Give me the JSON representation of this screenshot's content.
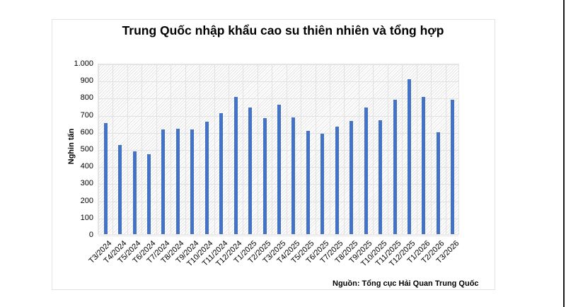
{
  "chart_data": {
    "type": "bar",
    "title": "Trung Quốc nhập khẩu cao su thiên nhiên và tổng hợp",
    "xlabel": "",
    "ylabel": "Nghin tấn",
    "ylim": [
      0,
      1000
    ],
    "yticks": [
      "0",
      "100",
      "200",
      "300",
      "400",
      "500",
      "600",
      "700",
      "800",
      "900",
      "1.000"
    ],
    "grid": true,
    "legend": null,
    "categories": [
      "T3/2024",
      "T4/2024",
      "T5/2024",
      "T6/2024",
      "T7/2024",
      "T8/2024",
      "T9/2024",
      "T10/2024",
      "T11/2024",
      "T12/2024",
      "T1/2025",
      "T2/2025",
      "T3/2025",
      "T4/2025",
      "T5/2025",
      "T6/2025",
      "T7/2025",
      "T8/2025",
      "T9/2025",
      "T10/2025",
      "T11/2025",
      "T12/2025",
      "T1/2026",
      "T2/2026",
      "T3/2026"
    ],
    "values": [
      648,
      521,
      482,
      468,
      610,
      614,
      611,
      656,
      708,
      800,
      738,
      677,
      757,
      683,
      604,
      588,
      630,
      661,
      739,
      664,
      787,
      903,
      800,
      597,
      784
    ],
    "bar_color": "#4472C4",
    "source": "Nguồn: Tổng cục Hải Quan Trung Quốc"
  }
}
